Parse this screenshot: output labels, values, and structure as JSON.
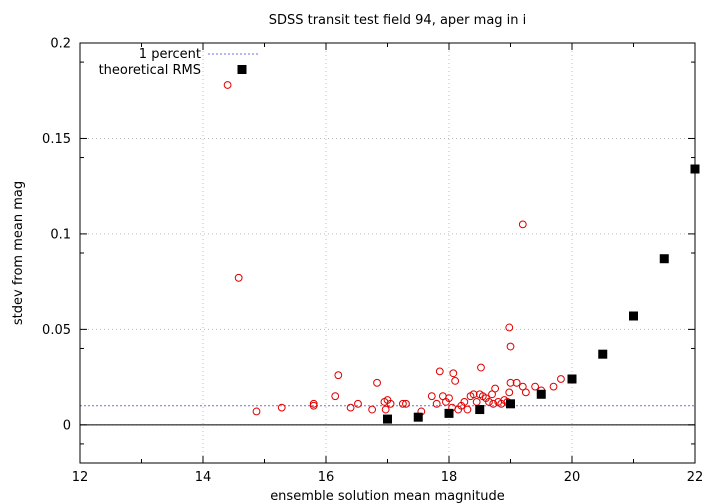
{
  "chart_data": {
    "type": "scatter",
    "title": "SDSS transit test field 94, aper mag in i",
    "xlabel": "ensemble solution mean magnitude",
    "ylabel": "stdev from mean mag",
    "xlim": [
      12,
      22
    ],
    "ylim": [
      -0.02,
      0.2
    ],
    "x_ticks": [
      12,
      14,
      16,
      18,
      20,
      22
    ],
    "x_tick_labels": [
      "12",
      "14",
      "16",
      "18",
      "20",
      "22"
    ],
    "y_ticks": [
      0,
      0.05,
      0.1,
      0.15,
      0.2
    ],
    "y_tick_labels": [
      "0",
      "0.05",
      "0.1",
      "0.15",
      "0.2"
    ],
    "grid": true,
    "legend_position": "top-left",
    "colors": {
      "observed": "#e00000",
      "reference_line": "#6f6fe8",
      "theoretical": "#000000",
      "zero_line": "#000000",
      "grid": "#bdbdbd"
    },
    "zero_line_y": 0,
    "series": [
      {
        "name": "1 percent",
        "kind": "hline",
        "y": 0.01
      },
      {
        "name": "theoretical RMS",
        "kind": "square-markers",
        "x": [
          17.0,
          17.5,
          18.0,
          18.5,
          19.0,
          19.5,
          20.0,
          20.5,
          21.0,
          21.5,
          22.0
        ],
        "y": [
          0.003,
          0.004,
          0.006,
          0.008,
          0.011,
          0.016,
          0.024,
          0.037,
          0.057,
          0.087,
          0.134
        ]
      },
      {
        "kind": "circle-markers",
        "x": [
          14.4,
          14.58,
          14.87,
          15.28,
          15.8,
          15.8,
          16.15,
          16.2,
          16.4,
          16.52,
          16.75,
          16.83,
          16.95,
          16.97,
          17.0,
          17.05,
          17.25,
          17.3,
          17.55,
          17.72,
          17.8,
          17.85,
          17.9,
          17.95,
          18.0,
          18.05,
          18.07,
          18.1,
          18.15,
          18.2,
          18.25,
          18.3,
          18.35,
          18.4,
          18.45,
          18.5,
          18.52,
          18.55,
          18.6,
          18.65,
          18.7,
          18.72,
          18.75,
          18.8,
          18.85,
          18.9,
          18.95,
          18.98,
          18.98,
          19.0,
          19.0,
          19.1,
          19.2,
          19.2,
          19.25,
          19.4,
          19.5,
          19.7,
          19.82
        ],
        "y": [
          0.178,
          0.077,
          0.007,
          0.009,
          0.011,
          0.01,
          0.015,
          0.026,
          0.009,
          0.011,
          0.008,
          0.022,
          0.012,
          0.008,
          0.013,
          0.011,
          0.011,
          0.011,
          0.007,
          0.015,
          0.011,
          0.028,
          0.015,
          0.012,
          0.014,
          0.009,
          0.027,
          0.023,
          0.008,
          0.01,
          0.012,
          0.008,
          0.015,
          0.016,
          0.012,
          0.016,
          0.03,
          0.015,
          0.014,
          0.012,
          0.016,
          0.011,
          0.019,
          0.012,
          0.011,
          0.013,
          0.012,
          0.017,
          0.051,
          0.022,
          0.041,
          0.022,
          0.105,
          0.02,
          0.017,
          0.02,
          0.018,
          0.02,
          0.024
        ]
      }
    ]
  }
}
